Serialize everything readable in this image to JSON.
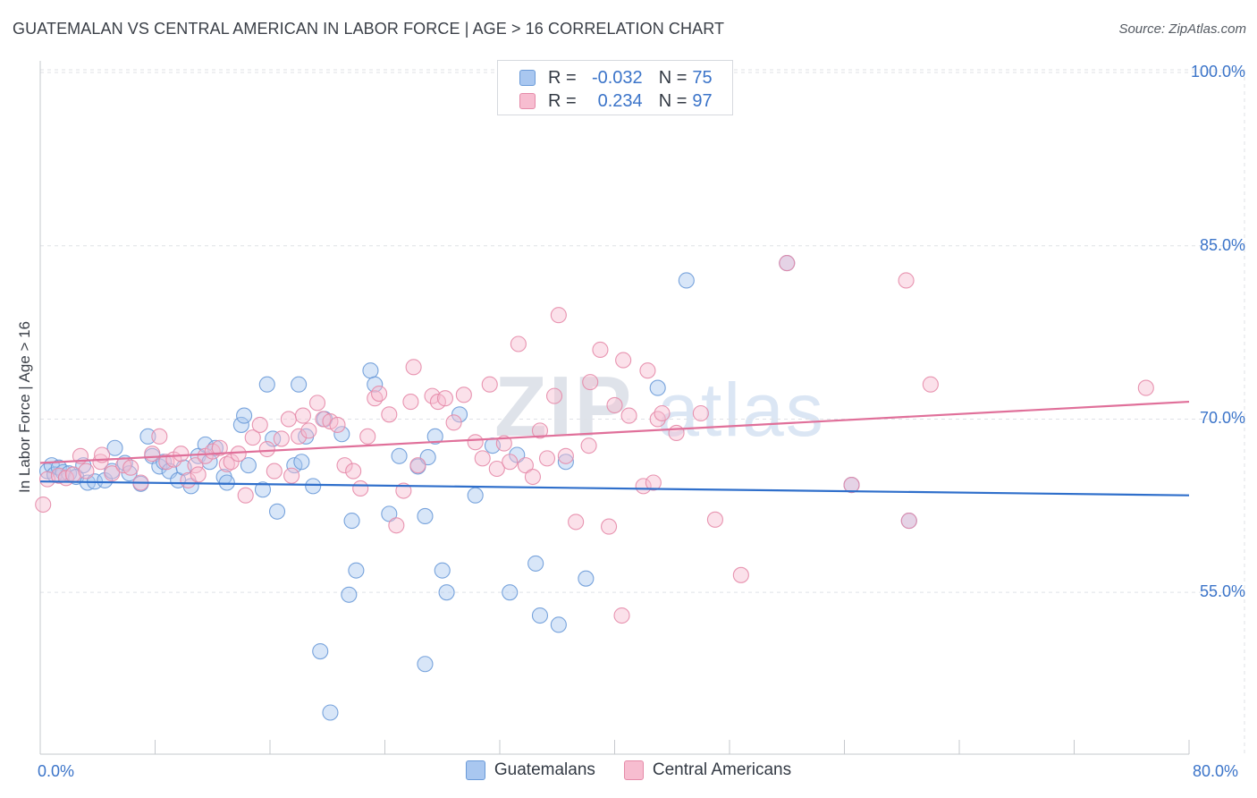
{
  "header": {
    "title": "GUATEMALAN VS CENTRAL AMERICAN IN LABOR FORCE | AGE > 16 CORRELATION CHART",
    "source": "Source: ZipAtlas.com"
  },
  "watermark": {
    "zip": "ZIP",
    "atlas": "atlas"
  },
  "legend": {
    "rows": [
      {
        "r_label": "R =",
        "r_value": "-0.032",
        "n_label": "N =",
        "n_value": "75"
      },
      {
        "r_label": "R =",
        "r_value": "0.234",
        "n_label": "N =",
        "n_value": "97"
      }
    ]
  },
  "colors": {
    "guatemalan_fill": "#a9c7f0",
    "guatemalan_stroke": "#6a9ad8",
    "guatemalan_line": "#2f6fcb",
    "central_fill": "#f7bdd0",
    "central_stroke": "#e58aa8",
    "central_line": "#e0709a",
    "axis_text": "#3b74c9",
    "grid": "#dfe2e6"
  },
  "chart_data": {
    "type": "scatter",
    "title": "GUATEMALAN VS CENTRAL AMERICAN IN LABOR FORCE | AGE > 16 CORRELATION CHART",
    "xlabel": "",
    "ylabel": "In Labor Force | Age > 16",
    "xlim": [
      0,
      80
    ],
    "ylim": [
      41,
      100
    ],
    "x_tick_labels": [
      "0.0%",
      "80.0%"
    ],
    "y_ticks": [
      55,
      70,
      85,
      100
    ],
    "y_tick_labels": [
      "55.0%",
      "70.0%",
      "85.0%",
      "100.0%"
    ],
    "grid": true,
    "legend_position": "top-center",
    "series": [
      {
        "name": "Guatemalans",
        "r": -0.032,
        "n": 75,
        "trend": {
          "x": [
            0,
            80
          ],
          "y": [
            64.6,
            63.4
          ]
        },
        "points": [
          [
            0.5,
            65.5
          ],
          [
            0.8,
            66.0
          ],
          [
            1.0,
            65.2
          ],
          [
            1.3,
            65.8
          ],
          [
            1.6,
            65.4
          ],
          [
            2.0,
            65.3
          ],
          [
            2.5,
            65.0
          ],
          [
            3.0,
            66.0
          ],
          [
            3.3,
            64.5
          ],
          [
            3.8,
            64.6
          ],
          [
            4.5,
            64.7
          ],
          [
            5.0,
            65.5
          ],
          [
            5.2,
            67.5
          ],
          [
            5.9,
            66.2
          ],
          [
            6.2,
            65.3
          ],
          [
            7.0,
            64.4
          ],
          [
            7.5,
            68.5
          ],
          [
            7.8,
            66.8
          ],
          [
            8.3,
            65.9
          ],
          [
            8.6,
            66.3
          ],
          [
            9.0,
            65.5
          ],
          [
            9.6,
            64.7
          ],
          [
            10.0,
            65.8
          ],
          [
            10.5,
            64.2
          ],
          [
            11.0,
            66.8
          ],
          [
            11.5,
            67.8
          ],
          [
            11.8,
            66.3
          ],
          [
            12.2,
            67.5
          ],
          [
            12.8,
            65.0
          ],
          [
            13.0,
            64.5
          ],
          [
            14.0,
            69.5
          ],
          [
            14.2,
            70.3
          ],
          [
            14.5,
            66.0
          ],
          [
            15.5,
            63.9
          ],
          [
            15.8,
            73.0
          ],
          [
            16.2,
            68.3
          ],
          [
            16.5,
            62.0
          ],
          [
            17.7,
            66.0
          ],
          [
            18.0,
            73.0
          ],
          [
            18.2,
            66.3
          ],
          [
            18.5,
            68.5
          ],
          [
            19.0,
            64.2
          ],
          [
            19.5,
            49.9
          ],
          [
            20.2,
            44.6
          ],
          [
            19.8,
            70.0
          ],
          [
            21.0,
            68.7
          ],
          [
            21.7,
            61.2
          ],
          [
            22.0,
            56.9
          ],
          [
            21.5,
            54.8
          ],
          [
            23.0,
            74.2
          ],
          [
            23.3,
            73.0
          ],
          [
            24.3,
            61.8
          ],
          [
            25.0,
            66.8
          ],
          [
            26.3,
            65.9
          ],
          [
            26.8,
            48.8
          ],
          [
            26.8,
            61.6
          ],
          [
            27.0,
            66.7
          ],
          [
            27.5,
            68.5
          ],
          [
            28.0,
            56.9
          ],
          [
            28.3,
            55.0
          ],
          [
            29.2,
            70.4
          ],
          [
            30.3,
            63.4
          ],
          [
            31.5,
            67.7
          ],
          [
            32.7,
            55.0
          ],
          [
            33.2,
            66.9
          ],
          [
            34.5,
            57.5
          ],
          [
            34.8,
            53.0
          ],
          [
            36.1,
            52.2
          ],
          [
            36.6,
            66.3
          ],
          [
            38.0,
            56.2
          ],
          [
            43.0,
            72.7
          ],
          [
            45.0,
            82.0
          ],
          [
            52.0,
            83.5
          ],
          [
            56.5,
            64.3
          ],
          [
            60.5,
            61.2
          ]
        ]
      },
      {
        "name": "Central Americans",
        "r": 0.234,
        "n": 97,
        "trend": {
          "x": [
            0,
            80
          ],
          "y": [
            66.2,
            71.5
          ]
        },
        "points": [
          [
            0.2,
            62.6
          ],
          [
            0.5,
            64.8
          ],
          [
            1.3,
            65.1
          ],
          [
            1.8,
            64.9
          ],
          [
            2.3,
            65.2
          ],
          [
            2.8,
            66.8
          ],
          [
            3.2,
            65.5
          ],
          [
            4.2,
            66.3
          ],
          [
            4.3,
            66.9
          ],
          [
            5.0,
            65.3
          ],
          [
            5.8,
            66.0
          ],
          [
            6.3,
            65.8
          ],
          [
            7.0,
            64.5
          ],
          [
            7.8,
            67.0
          ],
          [
            8.3,
            68.5
          ],
          [
            8.8,
            66.3
          ],
          [
            9.3,
            66.5
          ],
          [
            9.8,
            67.0
          ],
          [
            10.3,
            64.7
          ],
          [
            10.8,
            66.0
          ],
          [
            11.0,
            65.2
          ],
          [
            11.5,
            66.8
          ],
          [
            12.0,
            67.2
          ],
          [
            12.5,
            67.5
          ],
          [
            13.0,
            66.1
          ],
          [
            13.3,
            66.3
          ],
          [
            13.8,
            67.0
          ],
          [
            14.3,
            63.4
          ],
          [
            14.8,
            68.4
          ],
          [
            15.3,
            69.5
          ],
          [
            15.8,
            67.4
          ],
          [
            16.3,
            65.5
          ],
          [
            16.8,
            68.3
          ],
          [
            17.3,
            70.0
          ],
          [
            17.5,
            65.1
          ],
          [
            18.0,
            68.5
          ],
          [
            18.3,
            70.3
          ],
          [
            18.7,
            69.0
          ],
          [
            19.3,
            71.4
          ],
          [
            19.7,
            70.0
          ],
          [
            20.2,
            69.8
          ],
          [
            20.7,
            69.5
          ],
          [
            21.2,
            66.0
          ],
          [
            21.8,
            65.5
          ],
          [
            22.3,
            64.0
          ],
          [
            22.8,
            68.5
          ],
          [
            23.3,
            71.8
          ],
          [
            23.6,
            72.2
          ],
          [
            24.3,
            70.4
          ],
          [
            24.8,
            60.8
          ],
          [
            25.3,
            63.8
          ],
          [
            25.8,
            71.5
          ],
          [
            26.0,
            74.5
          ],
          [
            26.3,
            66.0
          ],
          [
            27.3,
            72.0
          ],
          [
            27.7,
            71.5
          ],
          [
            28.2,
            71.8
          ],
          [
            28.8,
            69.7
          ],
          [
            29.5,
            72.1
          ],
          [
            30.3,
            68.0
          ],
          [
            30.8,
            66.6
          ],
          [
            31.3,
            73.0
          ],
          [
            31.8,
            65.7
          ],
          [
            32.3,
            67.9
          ],
          [
            32.7,
            66.3
          ],
          [
            33.3,
            76.5
          ],
          [
            33.8,
            66.0
          ],
          [
            34.3,
            65.0
          ],
          [
            34.8,
            69.0
          ],
          [
            35.3,
            66.6
          ],
          [
            35.8,
            72.0
          ],
          [
            36.1,
            79.0
          ],
          [
            36.6,
            66.8
          ],
          [
            37.3,
            61.1
          ],
          [
            38.2,
            67.7
          ],
          [
            38.3,
            73.2
          ],
          [
            39.0,
            76.0
          ],
          [
            39.6,
            60.7
          ],
          [
            40.0,
            71.2
          ],
          [
            40.6,
            75.1
          ],
          [
            40.5,
            53.0
          ],
          [
            41.0,
            70.3
          ],
          [
            42.0,
            64.2
          ],
          [
            42.3,
            74.2
          ],
          [
            42.7,
            64.5
          ],
          [
            43.0,
            70.0
          ],
          [
            43.3,
            70.5
          ],
          [
            44.3,
            68.8
          ],
          [
            46.0,
            70.5
          ],
          [
            47.0,
            61.3
          ],
          [
            48.8,
            56.5
          ],
          [
            52.0,
            83.5
          ],
          [
            56.5,
            64.3
          ],
          [
            60.3,
            82.0
          ],
          [
            60.5,
            61.2
          ],
          [
            62.0,
            73.0
          ],
          [
            77.0,
            72.7
          ]
        ]
      }
    ]
  },
  "bottom_legend": {
    "items": [
      "Guatemalans",
      "Central Americans"
    ]
  }
}
